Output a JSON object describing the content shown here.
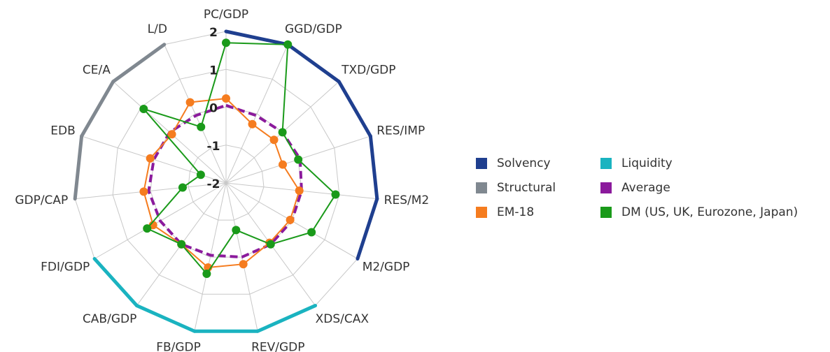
{
  "chart_data": {
    "type": "radar",
    "categories": [
      "PC/GDP",
      "GGD/GDP",
      "TXD/GDP",
      "RES/IMP",
      "RES/M2",
      "M2/GDP",
      "XDS/CAX",
      "REV/GDP",
      "FB/GDP",
      "CAB/GDP",
      "FDI/GDP",
      "GDP/CAP",
      "EDB",
      "CE/A",
      "L/D"
    ],
    "category_groups": [
      "Solvency",
      "Solvency",
      "Solvency",
      "Solvency",
      "Solvency",
      "Solvency",
      "Liquidity",
      "Liquidity",
      "Liquidity",
      "Liquidity",
      "Liquidity",
      "Structural",
      "Structural",
      "Structural",
      "Structural"
    ],
    "groups": [
      {
        "name": "Solvency",
        "color": "#1f3f8f"
      },
      {
        "name": "Liquidity",
        "color": "#1ab3c0"
      },
      {
        "name": "Structural",
        "color": "#808890"
      }
    ],
    "series": [
      {
        "name": "Average",
        "color": "#8b1a9c",
        "dashed": true,
        "values": [
          0.05,
          -0.05,
          0,
          0.05,
          0,
          0,
          0,
          0,
          -0.05,
          0,
          0,
          0.05,
          0,
          0,
          -0.05
        ]
      },
      {
        "name": "EM-18",
        "color": "#f57c1f",
        "values": [
          0.23,
          -0.3,
          -0.3,
          -0.43,
          -0.06,
          -0.05,
          -0.05,
          0.19,
          0.28,
          0,
          0.22,
          0.18,
          0.1,
          -0.08,
          0.33
        ]
      },
      {
        "name": "DM (US, UK, Eurozone, Japan)",
        "color": "#1a9a1a",
        "values": [
          1.7,
          2,
          0,
          0,
          0.9,
          0.6,
          0,
          -0.73,
          0.45,
          0,
          0.4,
          -0.85,
          -1.3,
          0.92,
          -0.38
        ]
      }
    ],
    "rlim": [
      -2,
      2
    ],
    "rticks": [
      2,
      1,
      0,
      -1,
      -2
    ],
    "grid": true
  }
}
